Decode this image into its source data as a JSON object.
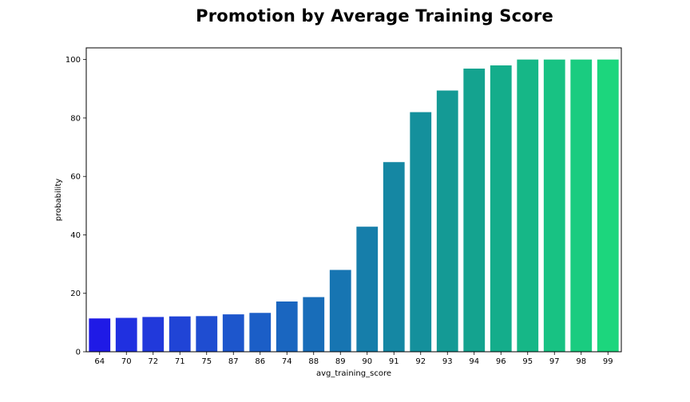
{
  "chart_data": {
    "type": "bar",
    "title": "Promotion by Average Training Score",
    "xlabel": "avg_training_score",
    "ylabel": "probability",
    "ylim": [
      0,
      104
    ],
    "yticks": [
      0,
      20,
      40,
      60,
      80,
      100
    ],
    "categories": [
      "64",
      "70",
      "72",
      "71",
      "75",
      "87",
      "86",
      "74",
      "88",
      "89",
      "90",
      "91",
      "92",
      "93",
      "94",
      "96",
      "95",
      "97",
      "98",
      "99"
    ],
    "values": [
      11.4,
      11.6,
      11.9,
      12.1,
      12.2,
      12.8,
      13.3,
      17.2,
      18.7,
      28.0,
      42.8,
      64.9,
      82.0,
      89.4,
      96.9,
      98.0,
      100,
      100,
      100,
      100
    ],
    "colors": [
      "#1f1ae6",
      "#2030e0",
      "#2139db",
      "#2044d6",
      "#1f4dd1",
      "#1d56cc",
      "#1b5ec7",
      "#1a66c0",
      "#186db9",
      "#1775b2",
      "#167eaa",
      "#1587a3",
      "#14909c",
      "#149a95",
      "#14a38f",
      "#14ad8b",
      "#16b787",
      "#18c283",
      "#1acc80",
      "#1cd67d"
    ],
    "grid": false,
    "legend": "none"
  }
}
